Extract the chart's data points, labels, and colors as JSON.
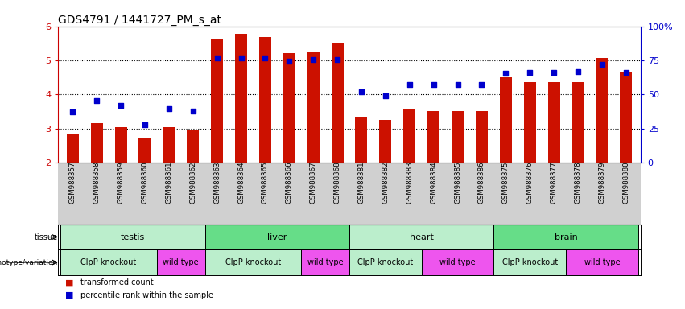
{
  "title": "GDS4791 / 1441727_PM_s_at",
  "samples": [
    "GSM988357",
    "GSM988358",
    "GSM988359",
    "GSM988360",
    "GSM988361",
    "GSM988362",
    "GSM988363",
    "GSM988364",
    "GSM988365",
    "GSM988366",
    "GSM988367",
    "GSM988368",
    "GSM988381",
    "GSM988382",
    "GSM988383",
    "GSM988384",
    "GSM988385",
    "GSM988386",
    "GSM988375",
    "GSM988376",
    "GSM988377",
    "GSM988378",
    "GSM988379",
    "GSM988380"
  ],
  "bar_values": [
    2.82,
    3.15,
    3.05,
    2.72,
    3.05,
    2.95,
    5.62,
    5.78,
    5.68,
    5.22,
    5.25,
    5.5,
    3.35,
    3.25,
    3.58,
    3.5,
    3.52,
    3.5,
    4.5,
    4.35,
    4.35,
    4.35,
    5.08,
    4.65
  ],
  "dot_values": [
    3.48,
    3.82,
    3.68,
    3.12,
    3.58,
    3.5,
    5.08,
    5.08,
    5.08,
    4.98,
    5.02,
    5.02,
    4.08,
    3.95,
    4.28,
    4.28,
    4.28,
    4.28,
    4.62,
    4.65,
    4.65,
    4.68,
    4.88,
    4.65
  ],
  "ylim": [
    2,
    6
  ],
  "yticks": [
    2,
    3,
    4,
    5,
    6
  ],
  "right_ytick_vals": [
    0,
    25,
    50,
    75,
    100
  ],
  "right_ytick_labels": [
    "0",
    "25",
    "50",
    "75",
    "100%"
  ],
  "bar_color": "#cc1100",
  "dot_color": "#0000cc",
  "tissues": [
    {
      "label": "testis",
      "start": 0,
      "end": 6,
      "color": "#bbeecc"
    },
    {
      "label": "liver",
      "start": 6,
      "end": 12,
      "color": "#66dd88"
    },
    {
      "label": "heart",
      "start": 12,
      "end": 18,
      "color": "#bbeecc"
    },
    {
      "label": "brain",
      "start": 18,
      "end": 24,
      "color": "#66dd88"
    }
  ],
  "genotypes": [
    {
      "label": "ClpP knockout",
      "start": 0,
      "end": 4,
      "color": "#bbeecc"
    },
    {
      "label": "wild type",
      "start": 4,
      "end": 6,
      "color": "#ee55ee"
    },
    {
      "label": "ClpP knockout",
      "start": 6,
      "end": 10,
      "color": "#bbeecc"
    },
    {
      "label": "wild type",
      "start": 10,
      "end": 12,
      "color": "#ee55ee"
    },
    {
      "label": "ClpP knockout",
      "start": 12,
      "end": 15,
      "color": "#bbeecc"
    },
    {
      "label": "wild type",
      "start": 15,
      "end": 18,
      "color": "#ee55ee"
    },
    {
      "label": "ClpP knockout",
      "start": 18,
      "end": 21,
      "color": "#bbeecc"
    },
    {
      "label": "wild type",
      "start": 21,
      "end": 24,
      "color": "#ee55ee"
    }
  ],
  "title_fontsize": 10,
  "left_color": "#cc0000",
  "right_color": "#0000cc",
  "xtick_bg": "#d0d0d0",
  "tissue_border_color": "#000000",
  "legend_bar_label": "transformed count",
  "legend_dot_label": "percentile rank within the sample"
}
